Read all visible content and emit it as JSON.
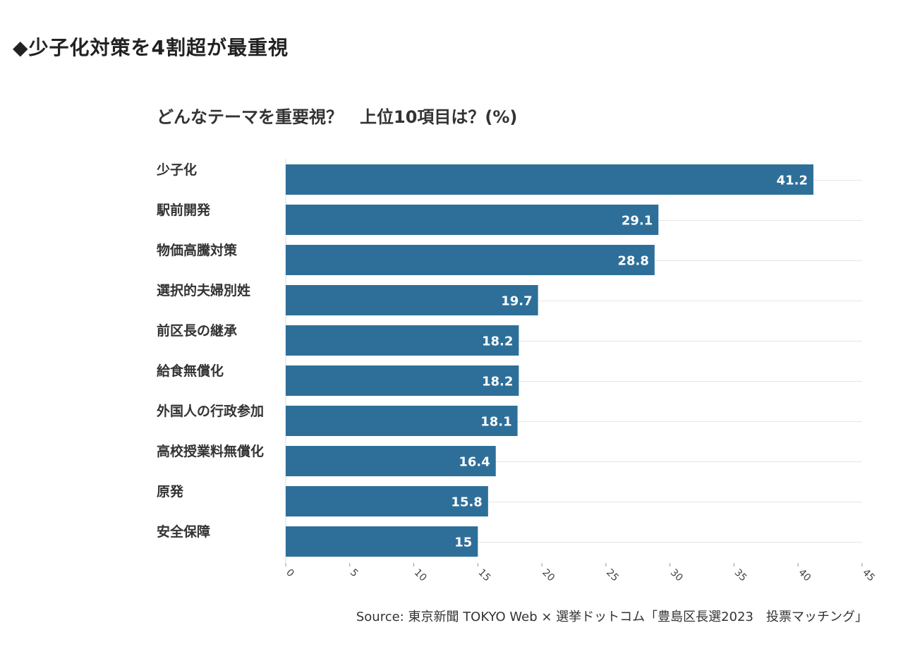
{
  "page": {
    "heading": "◆少子化対策を4割超が最重視",
    "source": "Source: 東京新聞 TOKYO Web × 選挙ドットコム「豊島区長選2023　投票マッチング」"
  },
  "chart_data": {
    "type": "bar",
    "orientation": "horizontal",
    "title": "どんなテーマを重要視？　上位10項目は？(%)",
    "xlabel": "",
    "ylabel": "",
    "categories": [
      "少子化",
      "駅前開発",
      "物価高騰対策",
      "選択的夫婦別姓",
      "前区長の継承",
      "給食無償化",
      "外国人の行政参加",
      "高校授業料無償化",
      "原発",
      "安全保障"
    ],
    "values": [
      41.2,
      29.1,
      28.8,
      19.7,
      18.2,
      18.2,
      18.1,
      16.4,
      15.8,
      15
    ],
    "data_labels": [
      "41.2",
      "29.1",
      "28.8",
      "19.7",
      "18.2",
      "18.2",
      "18.1",
      "16.4",
      "15.8",
      "15"
    ],
    "xlim": [
      0,
      45
    ],
    "xticks": [
      0,
      5,
      10,
      15,
      20,
      25,
      30,
      35,
      40,
      45
    ],
    "grid": true,
    "legend": "none",
    "bar_color": "#2e6f99",
    "label_color": "#ffffff"
  }
}
